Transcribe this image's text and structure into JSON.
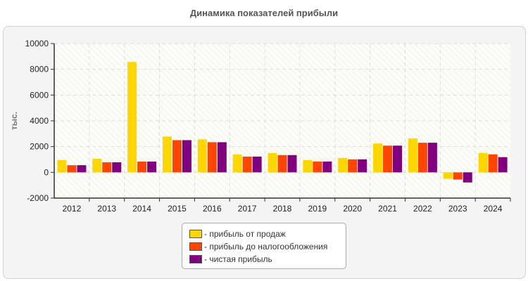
{
  "chart_data": {
    "type": "bar",
    "title": "Динамика показателей прибыли",
    "ylabel": "тыс.",
    "xlabel": "",
    "ylim": [
      -2000,
      10000
    ],
    "yticks": [
      -2000,
      0,
      2000,
      4000,
      6000,
      8000,
      10000
    ],
    "grid": true,
    "legend_position": "bottom",
    "categories": [
      "2012",
      "2013",
      "2014",
      "2015",
      "2016",
      "2017",
      "2018",
      "2019",
      "2020",
      "2021",
      "2022",
      "2023",
      "2024"
    ],
    "series": [
      {
        "name": "- прибыль от продаж",
        "color": "#ffd700",
        "values": [
          950,
          1050,
          8570,
          2780,
          2560,
          1390,
          1500,
          950,
          1120,
          2240,
          2630,
          -500,
          1510
        ]
      },
      {
        "name": "- прибыль до налогообложения",
        "color": "#ff4500",
        "values": [
          555,
          780,
          835,
          2500,
          2340,
          1225,
          1340,
          840,
          1010,
          2075,
          2300,
          -560,
          1400
        ]
      },
      {
        "name": "- чистая прибыль",
        "color": "#800080",
        "values": [
          555,
          780,
          835,
          2500,
          2340,
          1225,
          1340,
          840,
          1010,
          2075,
          2300,
          -785,
          1180
        ]
      }
    ]
  }
}
